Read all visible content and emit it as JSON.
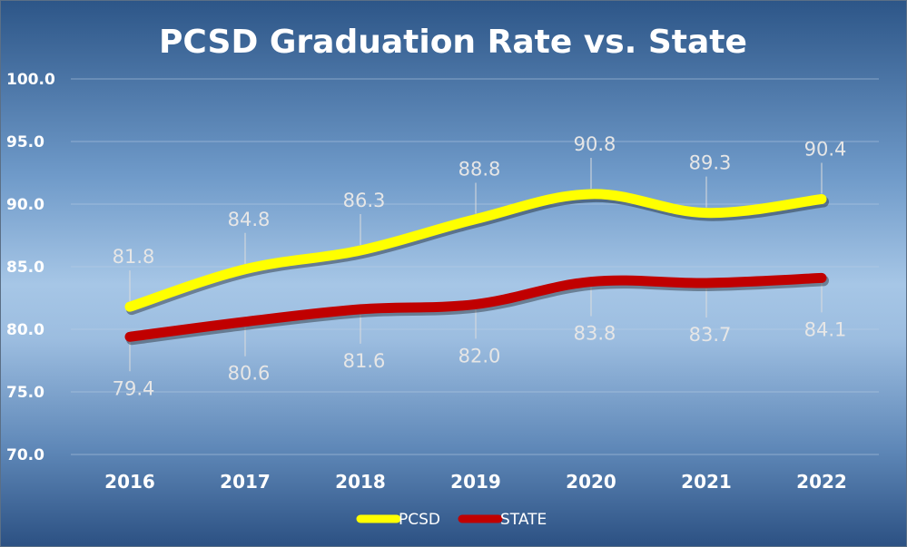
{
  "chart_data": {
    "type": "line",
    "title": "PCSD Graduation Rate vs. State",
    "xlabel": "",
    "ylabel": "",
    "categories": [
      "2016",
      "2017",
      "2018",
      "2019",
      "2020",
      "2021",
      "2022"
    ],
    "ylim": [
      70,
      100
    ],
    "yticks": [
      "70.0",
      "75.0",
      "80.0",
      "85.0",
      "90.0",
      "95.0",
      "100.0"
    ],
    "grid": true,
    "legend_position": "bottom",
    "series": [
      {
        "name": "PCSD",
        "color": "#ffff00",
        "values": [
          81.8,
          84.8,
          86.3,
          88.8,
          90.8,
          89.3,
          90.4
        ],
        "labels": [
          "81.8",
          "84.8",
          "86.3",
          "88.8",
          "90.8",
          "89.3",
          "90.4"
        ]
      },
      {
        "name": "STATE",
        "color": "#c00000",
        "values": [
          79.4,
          80.6,
          81.6,
          82.0,
          83.8,
          83.7,
          84.1
        ],
        "labels": [
          "79.4",
          "80.6",
          "81.6",
          "82.0",
          "83.8",
          "83.7",
          "84.1"
        ]
      }
    ]
  }
}
